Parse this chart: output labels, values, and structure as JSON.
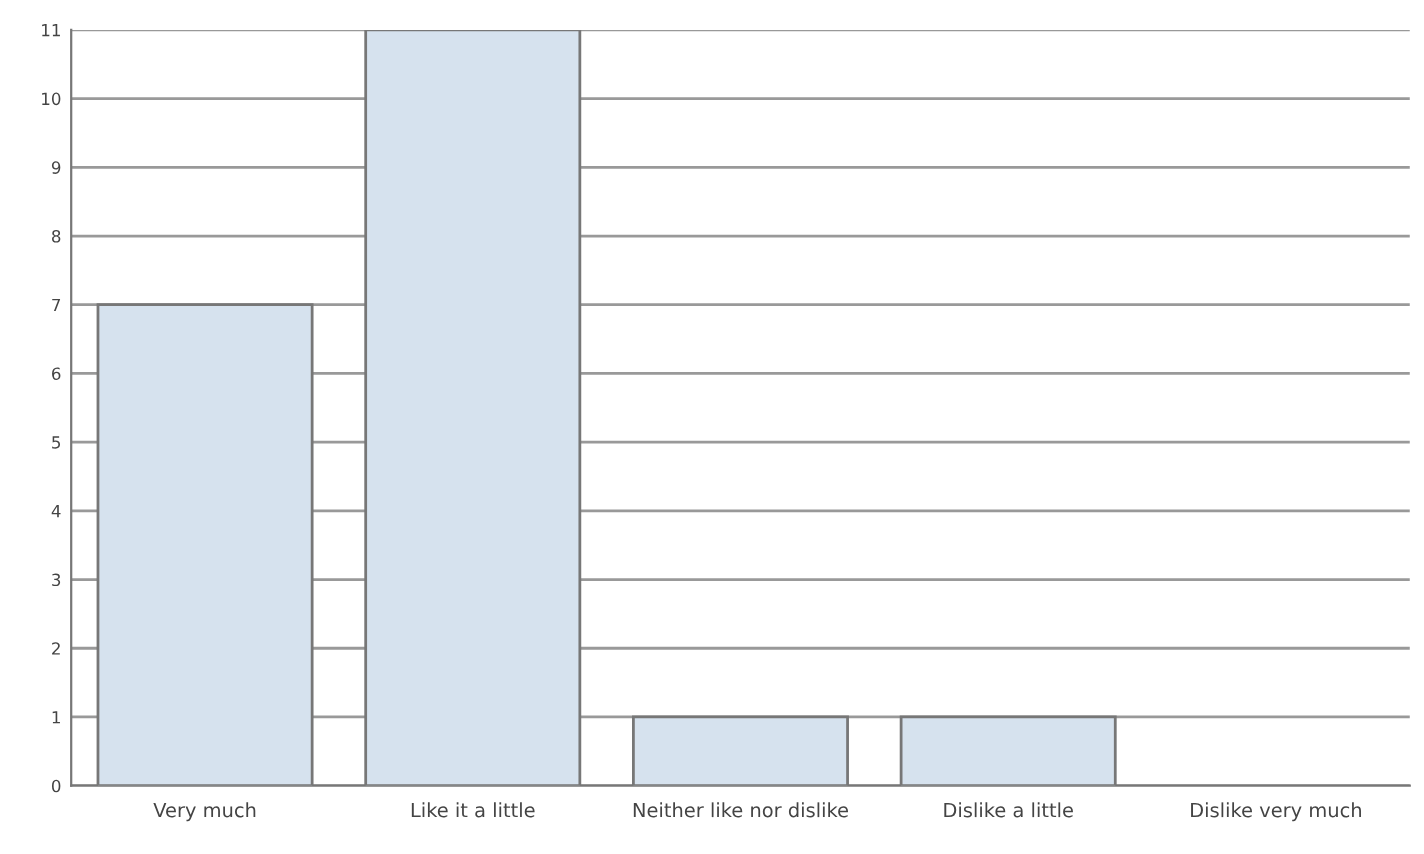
{
  "chart_data": {
    "type": "bar",
    "categories": [
      "Very much",
      "Like it a little",
      "Neither like nor dislike",
      "Dislike a little",
      "Dislike very much"
    ],
    "values": [
      7,
      11,
      1,
      1,
      0
    ],
    "color": "#d6e2ee",
    "ylim": [
      0,
      11
    ],
    "yticks": [
      0,
      1,
      2,
      3,
      4,
      5,
      6,
      7,
      8,
      9,
      10,
      11
    ],
    "grid": "y"
  }
}
